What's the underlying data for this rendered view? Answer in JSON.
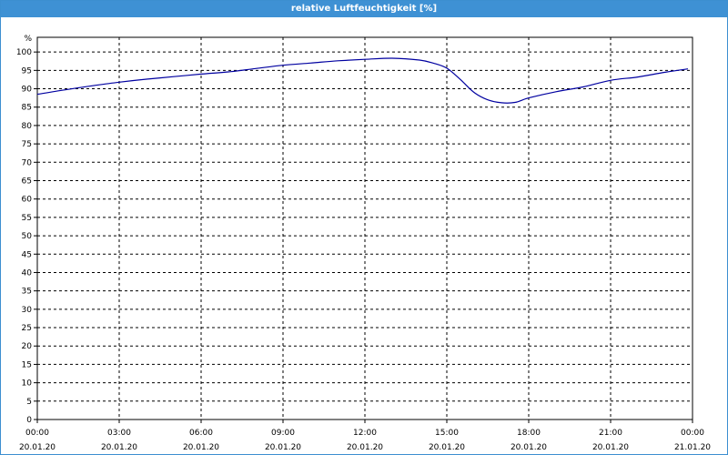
{
  "window": {
    "title": "relative Luftfeuchtigkeit [%]"
  },
  "chart_data": {
    "type": "line",
    "title": "relative Luftfeuchtigkeit [%]",
    "ylabel": "%",
    "xlabel": "",
    "ylim": [
      0,
      104
    ],
    "yticks": [
      0,
      5,
      10,
      15,
      20,
      25,
      30,
      35,
      40,
      45,
      50,
      55,
      60,
      65,
      70,
      75,
      80,
      85,
      90,
      95,
      100
    ],
    "xlim": [
      "20.01.20 00:00",
      "21.01.20 00:00"
    ],
    "xticks": [
      {
        "time": "00:00",
        "date": "20.01.20"
      },
      {
        "time": "03:00",
        "date": "20.01.20"
      },
      {
        "time": "06:00",
        "date": "20.01.20"
      },
      {
        "time": "09:00",
        "date": "20.01.20"
      },
      {
        "time": "12:00",
        "date": "20.01.20"
      },
      {
        "time": "15:00",
        "date": "20.01.20"
      },
      {
        "time": "18:00",
        "date": "20.01.20"
      },
      {
        "time": "21:00",
        "date": "20.01.20"
      },
      {
        "time": "00:00",
        "date": "21.01.20"
      }
    ],
    "grid": true,
    "line_color": "#0000a0",
    "series": [
      {
        "x": [
          "20.01.20 00:00",
          "20.01.20 01:00",
          "20.01.20 02:00",
          "20.01.20 03:00",
          "20.01.20 04:00",
          "20.01.20 05:00",
          "20.01.20 06:00",
          "20.01.20 07:00",
          "20.01.20 08:00",
          "20.01.20 09:00",
          "20.01.20 10:00",
          "20.01.20 11:00",
          "20.01.20 12:00",
          "20.01.20 13:00",
          "20.01.20 14:00",
          "20.01.20 14:30",
          "20.01.20 15:00",
          "20.01.20 15:30",
          "20.01.20 16:00",
          "20.01.20 16:30",
          "20.01.20 17:00",
          "20.01.20 17:30",
          "20.01.20 18:00",
          "20.01.20 19:00",
          "20.01.20 20:00",
          "20.01.20 21:00",
          "20.01.20 22:00",
          "20.01.20 23:00",
          "20.01.20 23:50"
        ],
        "values": [
          88.5,
          89.7,
          90.8,
          91.8,
          92.6,
          93.3,
          94.0,
          94.6,
          95.5,
          96.4,
          97.0,
          97.6,
          98.0,
          98.3,
          97.8,
          97.0,
          95.6,
          92.5,
          89.0,
          87.0,
          86.2,
          86.3,
          87.5,
          89.2,
          90.5,
          92.3,
          93.2,
          94.5,
          95.4
        ]
      }
    ]
  }
}
